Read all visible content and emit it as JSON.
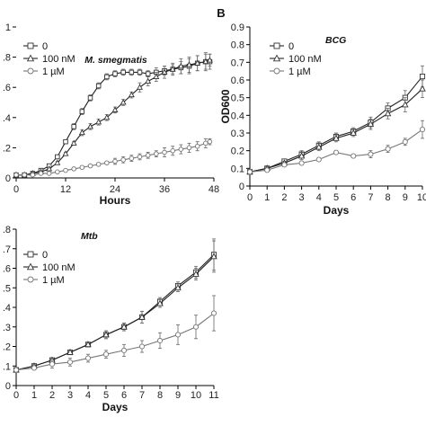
{
  "chart_data": [
    {
      "id": "A",
      "panel_label": "",
      "type": "line",
      "title": "M. smegmatis",
      "title_italic": true,
      "xlabel": "Hours",
      "ylabel": "",
      "xlim": [
        0,
        48
      ],
      "ylim": [
        0,
        1.0
      ],
      "xticks": [
        0,
        12,
        24,
        36,
        48
      ],
      "xtick_labels": [
        "0",
        "12",
        "24",
        "36",
        "48"
      ],
      "yticks": [
        0,
        0.2,
        0.4,
        0.6,
        0.8,
        1.0
      ],
      "ytick_labels": [
        "0",
        ".2",
        ".4",
        ".6",
        ".8",
        "1"
      ],
      "legend_position": "top-left",
      "grid": false,
      "series": [
        {
          "name": "0",
          "marker": "square",
          "x": [
            0,
            2,
            4,
            6,
            8,
            10,
            12,
            14,
            16,
            18,
            20,
            22,
            24,
            26,
            28,
            30,
            32,
            34,
            36,
            38,
            40,
            42,
            44,
            46,
            47
          ],
          "y": [
            0.02,
            0.02,
            0.03,
            0.05,
            0.08,
            0.14,
            0.24,
            0.34,
            0.44,
            0.53,
            0.61,
            0.67,
            0.69,
            0.7,
            0.7,
            0.7,
            0.69,
            0.7,
            0.71,
            0.72,
            0.73,
            0.74,
            0.76,
            0.77,
            0.77
          ],
          "err": [
            0,
            0,
            0,
            0,
            0,
            0.01,
            0.01,
            0.02,
            0.02,
            0.02,
            0.02,
            0.02,
            0.02,
            0.02,
            0.02,
            0.02,
            0.02,
            0.03,
            0.03,
            0.03,
            0.04,
            0.05,
            0.05,
            0.06,
            0.05
          ]
        },
        {
          "name": "100 nM",
          "marker": "triangle",
          "x": [
            0,
            2,
            4,
            6,
            8,
            10,
            12,
            14,
            16,
            18,
            20,
            22,
            24,
            26,
            28,
            30,
            32,
            34,
            36,
            38,
            40,
            42,
            44,
            46,
            47
          ],
          "y": [
            0.02,
            0.02,
            0.03,
            0.04,
            0.06,
            0.1,
            0.16,
            0.23,
            0.3,
            0.34,
            0.37,
            0.4,
            0.45,
            0.5,
            0.55,
            0.6,
            0.64,
            0.67,
            0.7,
            0.72,
            0.74,
            0.75,
            0.76,
            0.77,
            0.78
          ],
          "err": [
            0,
            0,
            0,
            0,
            0,
            0.01,
            0.01,
            0.01,
            0.02,
            0.02,
            0.02,
            0.02,
            0.02,
            0.02,
            0.02,
            0.03,
            0.03,
            0.03,
            0.04,
            0.04,
            0.05,
            0.05,
            0.05,
            0.05,
            0.04
          ]
        },
        {
          "name": "1 µM",
          "marker": "circle",
          "x": [
            0,
            2,
            4,
            6,
            8,
            10,
            12,
            14,
            16,
            18,
            20,
            22,
            24,
            26,
            28,
            30,
            32,
            34,
            36,
            38,
            40,
            42,
            44,
            46,
            47
          ],
          "y": [
            0.02,
            0.02,
            0.02,
            0.03,
            0.03,
            0.04,
            0.05,
            0.06,
            0.07,
            0.08,
            0.09,
            0.1,
            0.11,
            0.12,
            0.13,
            0.14,
            0.15,
            0.16,
            0.17,
            0.18,
            0.19,
            0.2,
            0.21,
            0.23,
            0.24
          ],
          "err": [
            0,
            0,
            0,
            0,
            0,
            0,
            0.01,
            0.01,
            0.01,
            0.01,
            0.01,
            0.01,
            0.02,
            0.02,
            0.02,
            0.02,
            0.02,
            0.02,
            0.03,
            0.03,
            0.03,
            0.03,
            0.03,
            0.03,
            0.02
          ]
        }
      ]
    },
    {
      "id": "B",
      "panel_label": "B",
      "type": "line",
      "title": "BCG",
      "title_italic": false,
      "xlabel": "Days",
      "ylabel": "OD600",
      "xlim": [
        0,
        10
      ],
      "ylim": [
        0,
        0.9
      ],
      "xticks": [
        0,
        1,
        2,
        3,
        4,
        5,
        6,
        7,
        8,
        9,
        10
      ],
      "xtick_labels": [
        "0",
        "1",
        "2",
        "3",
        "4",
        "5",
        "6",
        "7",
        "8",
        "9",
        "10"
      ],
      "yticks": [
        0,
        0.1,
        0.2,
        0.3,
        0.4,
        0.5,
        0.6,
        0.7,
        0.8,
        0.9
      ],
      "ytick_labels": [
        "0",
        "0.1",
        "0.2",
        "0.3",
        "0.4",
        "0.5",
        "0.6",
        "0.7",
        "0.8",
        "0.9"
      ],
      "legend_position": "top-left",
      "grid": false,
      "series": [
        {
          "name": "0",
          "marker": "square",
          "x": [
            0,
            1,
            2,
            3,
            4,
            5,
            6,
            7,
            8,
            9,
            10
          ],
          "y": [
            0.08,
            0.1,
            0.14,
            0.18,
            0.23,
            0.28,
            0.31,
            0.36,
            0.44,
            0.5,
            0.62
          ],
          "err": [
            0.01,
            0.01,
            0.01,
            0.02,
            0.02,
            0.02,
            0.02,
            0.03,
            0.03,
            0.04,
            0.06
          ]
        },
        {
          "name": "100 nM",
          "marker": "triangle",
          "x": [
            0,
            1,
            2,
            3,
            4,
            5,
            6,
            7,
            8,
            9,
            10
          ],
          "y": [
            0.08,
            0.1,
            0.13,
            0.17,
            0.22,
            0.27,
            0.3,
            0.35,
            0.41,
            0.46,
            0.55
          ],
          "err": [
            0.01,
            0.01,
            0.01,
            0.02,
            0.02,
            0.02,
            0.02,
            0.03,
            0.03,
            0.04,
            0.05
          ]
        },
        {
          "name": "1 µM",
          "marker": "circle",
          "x": [
            0,
            1,
            2,
            3,
            4,
            5,
            6,
            7,
            8,
            9,
            10
          ],
          "y": [
            0.08,
            0.09,
            0.12,
            0.13,
            0.15,
            0.19,
            0.17,
            0.18,
            0.21,
            0.25,
            0.32
          ],
          "err": [
            0.01,
            0.01,
            0.01,
            0.01,
            0.01,
            0.01,
            0.01,
            0.02,
            0.02,
            0.02,
            0.05
          ]
        }
      ]
    },
    {
      "id": "C",
      "panel_label": "",
      "type": "line",
      "title": "Mtb",
      "title_italic": true,
      "xlabel": "Days",
      "ylabel": "",
      "xlim": [
        0,
        11
      ],
      "ylim": [
        0,
        0.8
      ],
      "xticks": [
        0,
        1,
        2,
        3,
        4,
        5,
        6,
        7,
        8,
        9,
        10,
        11
      ],
      "xtick_labels": [
        "0",
        "1",
        "2",
        "3",
        "4",
        "5",
        "6",
        "7",
        "8",
        "9",
        "10",
        "11"
      ],
      "yticks": [
        0,
        0.1,
        0.2,
        0.3,
        0.4,
        0.5,
        0.6,
        0.7,
        0.8
      ],
      "ytick_labels": [
        "0",
        ".1",
        ".2",
        ".3",
        ".4",
        ".5",
        ".6",
        ".7",
        ".8"
      ],
      "legend_position": "top-left",
      "grid": false,
      "series": [
        {
          "name": "0",
          "marker": "square",
          "x": [
            0,
            1,
            2,
            3,
            4,
            5,
            6,
            7,
            8,
            9,
            10,
            11
          ],
          "y": [
            0.08,
            0.1,
            0.13,
            0.17,
            0.21,
            0.26,
            0.3,
            0.35,
            0.43,
            0.51,
            0.58,
            0.67
          ],
          "err": [
            0.01,
            0.01,
            0.01,
            0.01,
            0.01,
            0.02,
            0.02,
            0.03,
            0.02,
            0.02,
            0.03,
            0.08
          ]
        },
        {
          "name": "100 nM",
          "marker": "triangle",
          "x": [
            0,
            1,
            2,
            3,
            4,
            5,
            6,
            7,
            8,
            9,
            10,
            11
          ],
          "y": [
            0.08,
            0.1,
            0.13,
            0.17,
            0.21,
            0.26,
            0.3,
            0.35,
            0.42,
            0.5,
            0.57,
            0.66
          ],
          "err": [
            0.01,
            0.01,
            0.01,
            0.01,
            0.01,
            0.02,
            0.02,
            0.03,
            0.02,
            0.02,
            0.03,
            0.08
          ]
        },
        {
          "name": "1 µM",
          "marker": "circle",
          "x": [
            0,
            1,
            2,
            3,
            4,
            5,
            6,
            7,
            8,
            9,
            10,
            11
          ],
          "y": [
            0.08,
            0.09,
            0.11,
            0.12,
            0.14,
            0.16,
            0.18,
            0.2,
            0.23,
            0.26,
            0.3,
            0.37
          ],
          "err": [
            0.01,
            0.01,
            0.02,
            0.02,
            0.02,
            0.02,
            0.03,
            0.03,
            0.04,
            0.05,
            0.06,
            0.09
          ]
        }
      ]
    }
  ]
}
